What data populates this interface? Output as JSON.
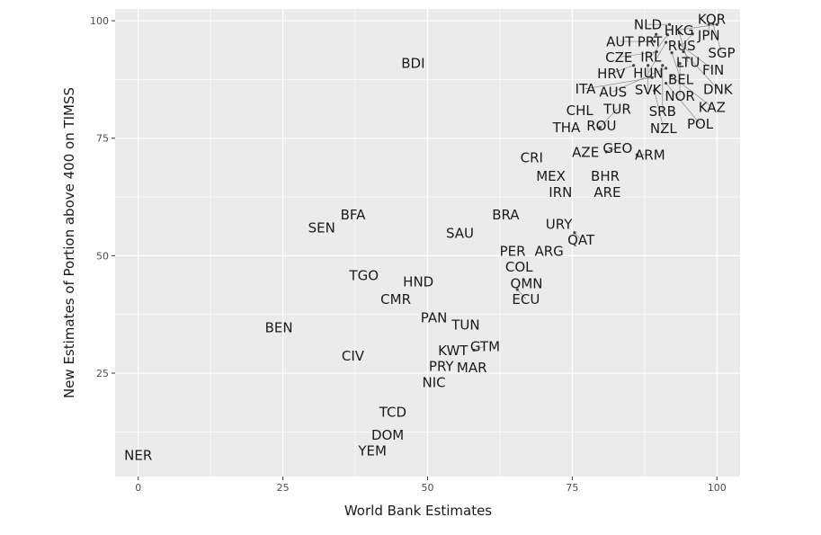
{
  "chart_data": {
    "type": "scatter",
    "title": "",
    "xlabel": "World Bank Estimates",
    "ylabel": "New Estimates of Portion above 400 on TIMSS",
    "xlim": [
      -4,
      104
    ],
    "ylim": [
      3,
      102.5
    ],
    "xticks": [
      0,
      25,
      50,
      75,
      100
    ],
    "yticks": [
      25,
      50,
      75,
      100
    ],
    "grid": true,
    "points": [
      {
        "label": "NER",
        "x": 0,
        "y": 7.6
      },
      {
        "label": "BDI",
        "x": 47.5,
        "y": 91
      },
      {
        "label": "BEN",
        "x": 24.3,
        "y": 34.8
      },
      {
        "label": "CIV",
        "x": 37.1,
        "y": 28.7
      },
      {
        "label": "SEN",
        "x": 31.7,
        "y": 56
      },
      {
        "label": "BFA",
        "x": 37.1,
        "y": 58.8
      },
      {
        "label": "TGO",
        "x": 39,
        "y": 45.9
      },
      {
        "label": "CMR",
        "x": 44.5,
        "y": 40.8
      },
      {
        "label": "HND",
        "x": 48.4,
        "y": 42.8
      },
      {
        "label": "PAN",
        "x": 51.1,
        "y": 36.9
      },
      {
        "label": "TUN",
        "x": 55.3,
        "y": 34.8
      },
      {
        "label": "KWT",
        "x": 54.4,
        "y": 29.9
      },
      {
        "label": "GTM",
        "x": 58,
        "y": 29.9
      },
      {
        "label": "PRY",
        "x": 52,
        "y": 27
      },
      {
        "label": "MAR",
        "x": 57,
        "y": 26
      },
      {
        "label": "NIC",
        "x": 51.1,
        "y": 24.8
      },
      {
        "label": "TCD",
        "x": 44,
        "y": 16.8
      },
      {
        "label": "DOM",
        "x": 43.1,
        "y": 11.9
      },
      {
        "label": "YEM",
        "x": 40.1,
        "y": 9
      },
      {
        "label": "SAU",
        "x": 55.6,
        "y": 54.9
      },
      {
        "label": "BRA",
        "x": 63.5,
        "y": 58.8
      },
      {
        "label": "PER",
        "x": 64.7,
        "y": 51
      },
      {
        "label": "ARG",
        "x": 71,
        "y": 51
      },
      {
        "label": "COL",
        "x": 65.8,
        "y": 48.8
      },
      {
        "label": "OMN",
        "x": 67.1,
        "y": 45.9
      },
      {
        "label": "ECU",
        "x": 65.5,
        "y": 42.8
      },
      {
        "label": "URY",
        "x": 72.7,
        "y": 56.8
      },
      {
        "label": "QAT",
        "x": 75.4,
        "y": 54.9
      },
      {
        "label": "CRI",
        "x": 68,
        "y": 70.9
      },
      {
        "label": "MEX",
        "x": 71.3,
        "y": 67
      },
      {
        "label": "IRN",
        "x": 72.6,
        "y": 64.1
      },
      {
        "label": "AZE",
        "x": 77.3,
        "y": 72.1
      },
      {
        "label": "GEO",
        "x": 80.9,
        "y": 72.1
      },
      {
        "label": "ARM",
        "x": 86.2,
        "y": 71.5
      },
      {
        "label": "BHR",
        "x": 80.7,
        "y": 67
      },
      {
        "label": "ARE",
        "x": 80.7,
        "y": 64.1
      },
      {
        "label": "CHL",
        "x": 76.3,
        "y": 81
      },
      {
        "label": "ROU",
        "x": 79.3,
        "y": 78.7
      },
      {
        "label": "THA",
        "x": 74,
        "y": 77.3
      },
      {
        "label": "TUR",
        "x": 79.8,
        "y": 77.3
      },
      {
        "label": "KOR",
        "x": 99.1,
        "y": 100.4
      },
      {
        "label": "JPN",
        "x": 98.6,
        "y": 99.2
      },
      {
        "label": "HKG",
        "x": 100,
        "y": 99.2
      },
      {
        "label": "SGP",
        "x": 99.3,
        "y": 99.4
      },
      {
        "label": "NLD",
        "x": 91.8,
        "y": 99.2
      },
      {
        "label": "RUS",
        "x": 95.8,
        "y": 97.2
      },
      {
        "label": "PRT",
        "x": 89.5,
        "y": 97.1
      },
      {
        "label": "IRL",
        "x": 91.5,
        "y": 97
      },
      {
        "label": "LTU",
        "x": 93.5,
        "y": 97.4
      },
      {
        "label": "AUT",
        "x": 89.2,
        "y": 95.6
      },
      {
        "label": "HUN",
        "x": 91.2,
        "y": 95.4
      },
      {
        "label": "CZE",
        "x": 89.6,
        "y": 93.4
      },
      {
        "label": "FIN",
        "x": 93.6,
        "y": 94.9
      },
      {
        "label": "BEL",
        "x": 92.2,
        "y": 93.2
      },
      {
        "label": "DNK",
        "x": 94.2,
        "y": 93.4
      },
      {
        "label": "NOR",
        "x": 93.6,
        "y": 90.9
      },
      {
        "label": "HRV",
        "x": 85.6,
        "y": 90.5
      },
      {
        "label": "SVK",
        "x": 88.1,
        "y": 90.5
      },
      {
        "label": "SRB",
        "x": 90.6,
        "y": 90.5
      },
      {
        "label": "AUS",
        "x": 91.2,
        "y": 89.9
      },
      {
        "label": "ITA",
        "x": 88.8,
        "y": 87.9
      },
      {
        "label": "KAZ",
        "x": 92.1,
        "y": 88.3
      },
      {
        "label": "POL",
        "x": 91.2,
        "y": 86.7
      },
      {
        "label": "NZL",
        "x": 89.2,
        "y": 85.1
      }
    ]
  }
}
